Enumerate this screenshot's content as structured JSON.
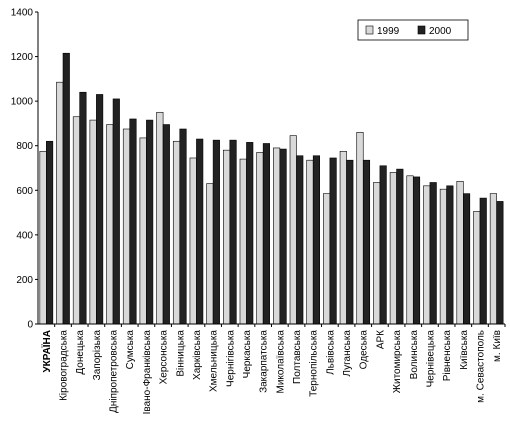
{
  "chart_data": {
    "type": "bar",
    "categories": [
      "УКРАЇНА",
      "Кіровоградська",
      "Донецька",
      "Запорізька",
      "Дніпропетровська",
      "Сумська",
      "Івано-Франківська",
      "Херсонська",
      "Вінницька",
      "Харківська",
      "Хмельницька",
      "Чернігівська",
      "Черкаська",
      "Закарпатська",
      "Миколаївська",
      "Полтавська",
      "Тернопільська",
      "Львівська",
      "Луганська",
      "Одеська",
      "АРК",
      "Житомирська",
      "Волинська",
      "Чернівецька",
      "Рівненська",
      "Київська",
      "м. Севастополь",
      "м. Київ"
    ],
    "series": [
      {
        "name": "1999",
        "color": "#d9d9d9",
        "values": [
          775,
          1085,
          930,
          915,
          895,
          875,
          835,
          950,
          820,
          745,
          630,
          780,
          740,
          770,
          790,
          845,
          735,
          585,
          775,
          860,
          635,
          680,
          665,
          620,
          605,
          640,
          505,
          585
        ]
      },
      {
        "name": "2000",
        "color": "#222222",
        "values": [
          820,
          1215,
          1040,
          1030,
          1010,
          920,
          915,
          895,
          875,
          830,
          825,
          825,
          815,
          810,
          785,
          755,
          755,
          745,
          735,
          735,
          710,
          695,
          660,
          635,
          620,
          585,
          565,
          550
        ]
      }
    ],
    "ylim": [
      0,
      1400
    ],
    "yticks": [
      0,
      200,
      400,
      600,
      800,
      1000,
      1200,
      1400
    ],
    "legend": "upper right",
    "grid": false
  }
}
